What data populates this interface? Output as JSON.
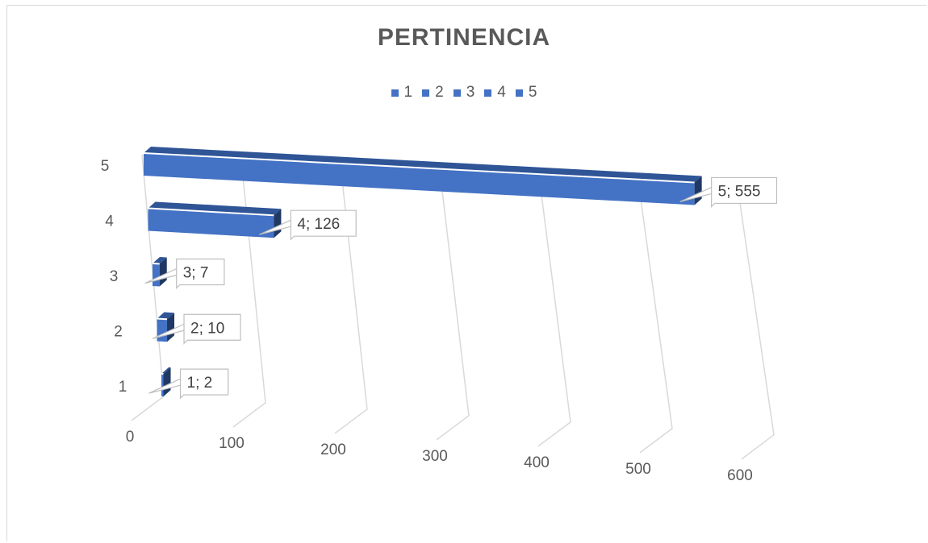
{
  "chart_data": {
    "type": "bar",
    "orientation": "horizontal",
    "style": "3d",
    "title": "PERTINENCIA",
    "categories": [
      "1",
      "2",
      "3",
      "4",
      "5"
    ],
    "values": [
      2,
      10,
      7,
      126,
      555
    ],
    "data_labels": [
      "1; 2",
      "2; 10",
      "3; 7",
      "4; 126",
      "5; 555"
    ],
    "xlim": [
      0,
      600
    ],
    "x_ticks": [
      "0",
      "100",
      "200",
      "300",
      "400",
      "500",
      "600"
    ],
    "legend": {
      "placement": "top",
      "entries": [
        "1",
        "2",
        "3",
        "4",
        "5"
      ]
    },
    "grid": true,
    "colors": {
      "bar_front": "#4472c4",
      "bar_top": "#2f5597",
      "bar_side": "#203864",
      "gridline": "#d9d9d9",
      "label_border": "#bfbfbf",
      "text": "#595959"
    }
  }
}
